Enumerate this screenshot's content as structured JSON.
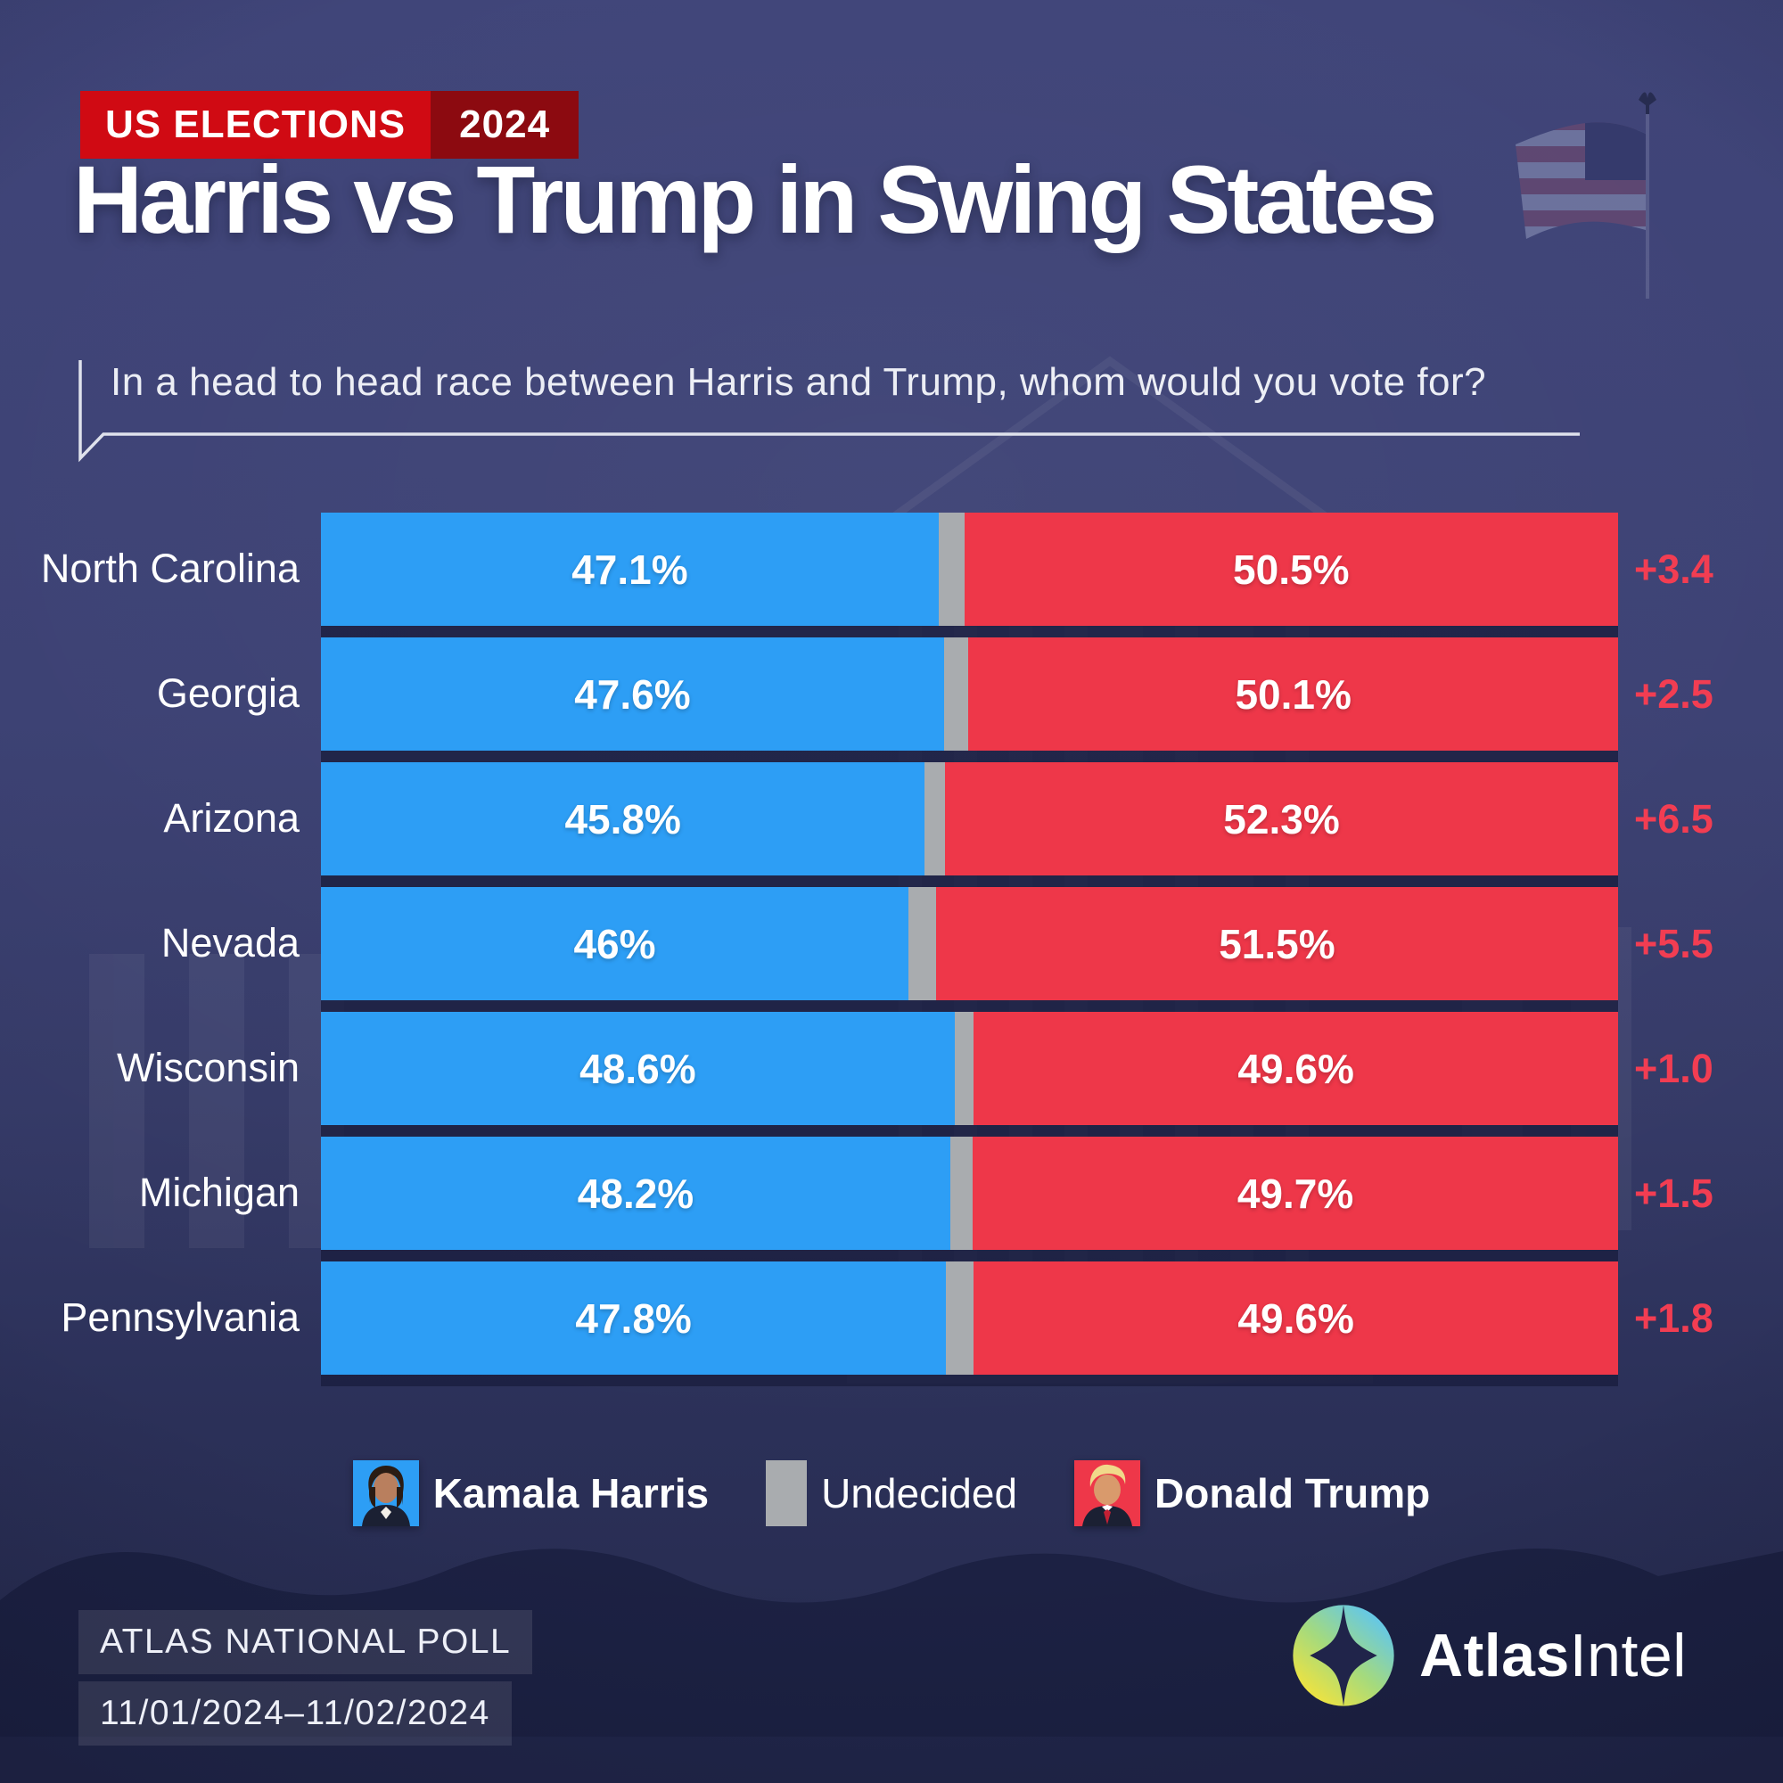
{
  "badge": {
    "label": "US ELECTIONS",
    "year": "2024"
  },
  "header": {
    "title": "Harris vs Trump in Swing States",
    "subtitle": "In a head to head race between Harris and Trump, whom would you vote for?"
  },
  "chart_data": {
    "type": "bar",
    "orientation": "horizontal",
    "stacked": true,
    "unit": "%",
    "xlim": [
      0,
      100
    ],
    "title": "Harris vs Trump in Swing States",
    "categories": [
      "North Carolina",
      "Georgia",
      "Arizona",
      "Nevada",
      "Wisconsin",
      "Michigan",
      "Pennsylvania"
    ],
    "series": [
      {
        "name": "Kamala Harris",
        "color": "#2d9ef5",
        "values": [
          47.1,
          47.6,
          45.8,
          46,
          48.6,
          48.2,
          47.8
        ],
        "labels": [
          "47.1%",
          "47.6%",
          "45.8%",
          "46%",
          "48.6%",
          "48.2%",
          "47.8%"
        ]
      },
      {
        "name": "Undecided",
        "color": "#a9acaf",
        "values": [
          2.4,
          2.3,
          1.9,
          2.5,
          1.8,
          2.1,
          2.6
        ],
        "labels": [
          "",
          "",
          "",
          "",
          "",
          "",
          ""
        ]
      },
      {
        "name": "Donald Trump",
        "color": "#ee3749",
        "values": [
          50.5,
          50.1,
          52.3,
          51.5,
          49.6,
          49.7,
          49.6
        ],
        "labels": [
          "50.5%",
          "50.1%",
          "52.3%",
          "51.5%",
          "49.6%",
          "49.7%",
          "49.6%"
        ]
      }
    ],
    "trump_lead_labels": [
      "+3.4",
      "+2.5",
      "+6.5",
      "+5.5",
      "+1.0",
      "+1.5",
      "+1.8"
    ],
    "lead_color": "#f23d52",
    "legend_position": "bottom",
    "grid": false
  },
  "legend": {
    "items": [
      {
        "label": "Kamala Harris",
        "swatch": "harris-photo"
      },
      {
        "label": "Undecided",
        "swatch": "gray-square"
      },
      {
        "label": "Donald Trump",
        "swatch": "trump-photo"
      }
    ]
  },
  "footer": {
    "poll_name": "ATLAS NATIONAL POLL",
    "poll_dates": "11/01/2024–11/02/2024"
  },
  "brand": {
    "name_bold": "Atlas",
    "name_regular": "Intel"
  },
  "colors": {
    "background_navy": "#3a3f72",
    "harris_blue": "#2d9ef5",
    "trump_red": "#ee3749",
    "undecided_gray": "#a9acaf",
    "lead_red": "#f23d52",
    "badge_red": "#d00a13",
    "badge_dark_red": "#8c0a10"
  }
}
